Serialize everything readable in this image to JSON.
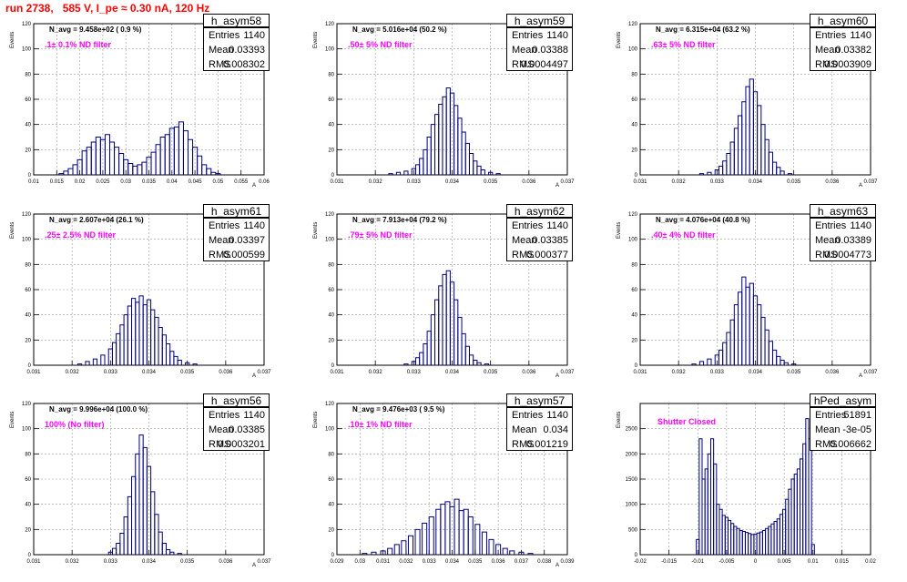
{
  "run_title": "run 2738,   585 V, I_pe ≈ 0.30 nA, 120 Hz",
  "colors": {
    "title": "#ff0000",
    "histogram": "#00007f",
    "filter_text": "#ff00ff",
    "grid": "#999999"
  },
  "chart_data": [
    {
      "type": "histogram",
      "name": "h_asym58",
      "n_avg": "N_avg = 9.458e+02 ( 0.9 %)",
      "filter": ".1± 0.1% ND filter",
      "stats": {
        "entries": "1140",
        "mean": "0.03393",
        "rms": "0.008302"
      },
      "ylabel": "Events",
      "xlabel": "A",
      "xlim": [
        0.01,
        0.06
      ],
      "ylim": [
        0,
        120
      ],
      "xticks": [
        "0.01",
        "0.015",
        "0.02",
        "0.025",
        "0.03",
        "0.035",
        "0.04",
        "0.045",
        "0.05",
        "0.055",
        "0.06"
      ],
      "yticks": [
        "0",
        "20",
        "40",
        "60",
        "80",
        "100",
        "120"
      ],
      "bins": [
        [
          0.016,
          1
        ],
        [
          0.017,
          3
        ],
        [
          0.018,
          5
        ],
        [
          0.019,
          8
        ],
        [
          0.02,
          12
        ],
        [
          0.021,
          19
        ],
        [
          0.022,
          22
        ],
        [
          0.023,
          26
        ],
        [
          0.024,
          30
        ],
        [
          0.025,
          28
        ],
        [
          0.026,
          32
        ],
        [
          0.027,
          26
        ],
        [
          0.028,
          22
        ],
        [
          0.029,
          17
        ],
        [
          0.03,
          12
        ],
        [
          0.031,
          9
        ],
        [
          0.032,
          7
        ],
        [
          0.033,
          8
        ],
        [
          0.034,
          10
        ],
        [
          0.035,
          14
        ],
        [
          0.036,
          18
        ],
        [
          0.037,
          24
        ],
        [
          0.038,
          30
        ],
        [
          0.039,
          32
        ],
        [
          0.04,
          37
        ],
        [
          0.041,
          38
        ],
        [
          0.042,
          42
        ],
        [
          0.043,
          35
        ],
        [
          0.044,
          28
        ],
        [
          0.045,
          22
        ],
        [
          0.046,
          15
        ],
        [
          0.047,
          8
        ],
        [
          0.048,
          5
        ],
        [
          0.049,
          2
        ],
        [
          0.05,
          1
        ]
      ]
    },
    {
      "type": "histogram",
      "name": "h_asym59",
      "n_avg": "N_avg = 5.016e+04 (50.2 %)",
      "filter": ".50± 5% ND filter",
      "stats": {
        "entries": "1140",
        "mean": "0.03388",
        "rms": "0.0004497"
      },
      "ylabel": "Events",
      "xlabel": "A",
      "xlim": [
        0.031,
        0.037
      ],
      "ylim": [
        0,
        120
      ],
      "xticks": [
        "0.031",
        "0.032",
        "0.033",
        "0.034",
        "0.035",
        "0.036",
        "0.037"
      ],
      "yticks": [
        "0",
        "20",
        "40",
        "60",
        "80",
        "100",
        "120"
      ],
      "bins": [
        [
          0.0324,
          1
        ],
        [
          0.0326,
          2
        ],
        [
          0.0328,
          3
        ],
        [
          0.033,
          5
        ],
        [
          0.0331,
          8
        ],
        [
          0.0332,
          13
        ],
        [
          0.0333,
          20
        ],
        [
          0.0334,
          30
        ],
        [
          0.0335,
          40
        ],
        [
          0.0336,
          48
        ],
        [
          0.0337,
          56
        ],
        [
          0.0338,
          62
        ],
        [
          0.0339,
          69
        ],
        [
          0.034,
          65
        ],
        [
          0.0341,
          55
        ],
        [
          0.0342,
          45
        ],
        [
          0.0343,
          34
        ],
        [
          0.0344,
          25
        ],
        [
          0.0345,
          17
        ],
        [
          0.0346,
          11
        ],
        [
          0.0347,
          7
        ],
        [
          0.0348,
          4
        ],
        [
          0.035,
          2
        ],
        [
          0.0352,
          1
        ]
      ]
    },
    {
      "type": "histogram",
      "name": "h_asym60",
      "n_avg": "N_avg = 6.315e+04 (63.2 %)",
      "filter": ".63± 5% ND filter",
      "stats": {
        "entries": "1140",
        "mean": "0.03382",
        "rms": "0.0003909"
      },
      "ylabel": "Events",
      "xlabel": "A",
      "xlim": [
        0.031,
        0.037
      ],
      "ylim": [
        0,
        120
      ],
      "xticks": [
        "0.031",
        "0.032",
        "0.033",
        "0.034",
        "0.035",
        "0.036",
        "0.037"
      ],
      "yticks": [
        "0",
        "20",
        "40",
        "60",
        "80",
        "100",
        "120"
      ],
      "bins": [
        [
          0.0326,
          1
        ],
        [
          0.0328,
          2
        ],
        [
          0.033,
          4
        ],
        [
          0.0331,
          7
        ],
        [
          0.0332,
          11
        ],
        [
          0.0333,
          17
        ],
        [
          0.0334,
          26
        ],
        [
          0.0335,
          37
        ],
        [
          0.0336,
          47
        ],
        [
          0.0337,
          58
        ],
        [
          0.0338,
          70
        ],
        [
          0.0339,
          76
        ],
        [
          0.034,
          66
        ],
        [
          0.0341,
          55
        ],
        [
          0.0342,
          40
        ],
        [
          0.0343,
          28
        ],
        [
          0.0344,
          18
        ],
        [
          0.0345,
          10
        ],
        [
          0.0346,
          6
        ],
        [
          0.0347,
          3
        ],
        [
          0.0349,
          1
        ]
      ]
    },
    {
      "type": "histogram",
      "name": "h_asym61",
      "n_avg": "N_avg = 2.607e+04 (26.1 %)",
      "filter": ".25± 2.5% ND filter",
      "stats": {
        "entries": "1140",
        "mean": "0.03397",
        "rms": "0.000599"
      },
      "ylabel": "Events",
      "xlabel": "A",
      "xlim": [
        0.031,
        0.037
      ],
      "ylim": [
        0,
        120
      ],
      "xticks": [
        "0.031",
        "0.032",
        "0.033",
        "0.034",
        "0.035",
        "0.036",
        "0.037"
      ],
      "yticks": [
        "0",
        "20",
        "40",
        "60",
        "80",
        "100",
        "120"
      ],
      "bins": [
        [
          0.0322,
          1
        ],
        [
          0.0324,
          3
        ],
        [
          0.0326,
          5
        ],
        [
          0.0328,
          8
        ],
        [
          0.033,
          13
        ],
        [
          0.0331,
          18
        ],
        [
          0.0332,
          25
        ],
        [
          0.0333,
          32
        ],
        [
          0.0334,
          40
        ],
        [
          0.0335,
          47
        ],
        [
          0.0336,
          53
        ],
        [
          0.0337,
          50
        ],
        [
          0.0338,
          55
        ],
        [
          0.0339,
          48
        ],
        [
          0.034,
          52
        ],
        [
          0.0341,
          44
        ],
        [
          0.0342,
          38
        ],
        [
          0.0343,
          30
        ],
        [
          0.0344,
          24
        ],
        [
          0.0345,
          17
        ],
        [
          0.0346,
          11
        ],
        [
          0.0347,
          7
        ],
        [
          0.0348,
          4
        ],
        [
          0.035,
          2
        ],
        [
          0.0352,
          1
        ]
      ]
    },
    {
      "type": "histogram",
      "name": "h_asym62",
      "n_avg": "N_avg = 7.913e+04 (79.2 %)",
      "filter": ".79± 5% ND filter",
      "stats": {
        "entries": "1140",
        "mean": "0.03385",
        "rms": "0.000377"
      },
      "ylabel": "Events",
      "xlabel": "A",
      "xlim": [
        0.031,
        0.037
      ],
      "ylim": [
        0,
        120
      ],
      "xticks": [
        "0.031",
        "0.032",
        "0.033",
        "0.034",
        "0.035",
        "0.036",
        "0.037"
      ],
      "yticks": [
        "0",
        "20",
        "40",
        "60",
        "80",
        "100",
        "120"
      ],
      "bins": [
        [
          0.0328,
          1
        ],
        [
          0.033,
          3
        ],
        [
          0.0331,
          6
        ],
        [
          0.0332,
          10
        ],
        [
          0.0333,
          17
        ],
        [
          0.0334,
          27
        ],
        [
          0.0335,
          40
        ],
        [
          0.0336,
          52
        ],
        [
          0.0337,
          63
        ],
        [
          0.0338,
          72
        ],
        [
          0.0339,
          75
        ],
        [
          0.034,
          66
        ],
        [
          0.0341,
          52
        ],
        [
          0.0342,
          38
        ],
        [
          0.0343,
          25
        ],
        [
          0.0344,
          15
        ],
        [
          0.0345,
          8
        ],
        [
          0.0346,
          4
        ],
        [
          0.0347,
          2
        ],
        [
          0.0349,
          1
        ]
      ]
    },
    {
      "type": "histogram",
      "name": "h_asym63",
      "n_avg": "N_avg = 4.076e+04 (40.8 %)",
      "filter": ".40± 4% ND filter",
      "stats": {
        "entries": "1140",
        "mean": "0.03389",
        "rms": "0.0004773"
      },
      "ylabel": "Events",
      "xlabel": "A",
      "xlim": [
        0.031,
        0.037
      ],
      "ylim": [
        0,
        120
      ],
      "xticks": [
        "0.031",
        "0.032",
        "0.033",
        "0.034",
        "0.035",
        "0.036",
        "0.037"
      ],
      "yticks": [
        "0",
        "20",
        "40",
        "60",
        "80",
        "100",
        "120"
      ],
      "bins": [
        [
          0.0324,
          1
        ],
        [
          0.0326,
          3
        ],
        [
          0.0328,
          5
        ],
        [
          0.033,
          8
        ],
        [
          0.0331,
          12
        ],
        [
          0.0332,
          18
        ],
        [
          0.0333,
          26
        ],
        [
          0.0334,
          36
        ],
        [
          0.0335,
          48
        ],
        [
          0.0336,
          58
        ],
        [
          0.0337,
          70
        ],
        [
          0.0338,
          62
        ],
        [
          0.0339,
          65
        ],
        [
          0.034,
          55
        ],
        [
          0.0341,
          48
        ],
        [
          0.0342,
          38
        ],
        [
          0.0343,
          28
        ],
        [
          0.0344,
          19
        ],
        [
          0.0345,
          12
        ],
        [
          0.0346,
          7
        ],
        [
          0.0347,
          4
        ],
        [
          0.0348,
          2
        ],
        [
          0.035,
          1
        ]
      ]
    },
    {
      "type": "histogram",
      "name": "h_asym56",
      "n_avg": "N_avg = 9.996e+04 (100.0 %)",
      "filter": "100% (No filter)",
      "stats": {
        "entries": "1140",
        "mean": "0.03385",
        "rms": "0.0003201"
      },
      "ylabel": "Events",
      "xlabel": "A",
      "xlim": [
        0.031,
        0.037
      ],
      "ylim": [
        0,
        120
      ],
      "xticks": [
        "0.031",
        "0.032",
        "0.033",
        "0.034",
        "0.035",
        "0.036",
        "0.037"
      ],
      "yticks": [
        "0",
        "20",
        "40",
        "60",
        "80",
        "100",
        "120"
      ],
      "bins": [
        [
          0.033,
          2
        ],
        [
          0.0331,
          5
        ],
        [
          0.0332,
          9
        ],
        [
          0.0333,
          17
        ],
        [
          0.0334,
          30
        ],
        [
          0.0335,
          46
        ],
        [
          0.0336,
          62
        ],
        [
          0.0337,
          80
        ],
        [
          0.0338,
          95
        ],
        [
          0.0339,
          85
        ],
        [
          0.034,
          70
        ],
        [
          0.0341,
          50
        ],
        [
          0.0342,
          32
        ],
        [
          0.0343,
          18
        ],
        [
          0.0344,
          9
        ],
        [
          0.0345,
          4
        ],
        [
          0.0346,
          2
        ],
        [
          0.0348,
          1
        ]
      ]
    },
    {
      "type": "histogram",
      "name": "h_asym57",
      "n_avg": "N_avg = 9.476e+03 ( 9.5 %)",
      "filter": ".10± 1% ND filter",
      "stats": {
        "entries": "1140",
        "mean": "0.034",
        "rms": "0.001219"
      },
      "ylabel": "Events",
      "xlabel": "A",
      "xlim": [
        0.029,
        0.039
      ],
      "ylim": [
        0,
        120
      ],
      "xticks": [
        "0.029",
        "0.03",
        "0.031",
        "0.032",
        "0.033",
        "0.034",
        "0.035",
        "0.036",
        "0.037",
        "0.038",
        "0.039"
      ],
      "yticks": [
        "0",
        "20",
        "40",
        "60",
        "80",
        "100",
        "120"
      ],
      "bins": [
        [
          0.0302,
          1
        ],
        [
          0.0306,
          2
        ],
        [
          0.031,
          3
        ],
        [
          0.0313,
          5
        ],
        [
          0.0316,
          8
        ],
        [
          0.0319,
          11
        ],
        [
          0.0322,
          15
        ],
        [
          0.0325,
          20
        ],
        [
          0.0328,
          25
        ],
        [
          0.0331,
          30
        ],
        [
          0.0334,
          36
        ],
        [
          0.0336,
          40
        ],
        [
          0.0338,
          42
        ],
        [
          0.034,
          38
        ],
        [
          0.0342,
          44
        ],
        [
          0.0344,
          35
        ],
        [
          0.0346,
          36
        ],
        [
          0.0348,
          30
        ],
        [
          0.0351,
          24
        ],
        [
          0.0354,
          18
        ],
        [
          0.0357,
          12
        ],
        [
          0.036,
          8
        ],
        [
          0.0363,
          5
        ],
        [
          0.0366,
          3
        ],
        [
          0.037,
          2
        ],
        [
          0.0374,
          1
        ]
      ]
    },
    {
      "type": "histogram",
      "name": "hPed_asym",
      "n_avg": "",
      "filter": "Shutter Closed",
      "stats": {
        "entries": "51891",
        "mean": "-3e-05",
        "rms": "0.006662"
      },
      "ylabel": "Events",
      "xlabel": "",
      "xlim": [
        -0.02,
        0.02
      ],
      "ylim": [
        0,
        3000
      ],
      "xticks": [
        "-0.02",
        "-0.015",
        "-0.01",
        "-0.005",
        "0",
        "0.005",
        "0.01",
        "0.015",
        "0.02"
      ],
      "yticks": [
        "0",
        "500",
        "1000",
        "1500",
        "2000",
        "2500"
      ],
      "bins": [
        [
          -0.01,
          300
        ],
        [
          -0.0095,
          2300
        ],
        [
          -0.009,
          1500
        ],
        [
          -0.0085,
          1700
        ],
        [
          -0.008,
          2000
        ],
        [
          -0.0075,
          2300
        ],
        [
          -0.007,
          1800
        ],
        [
          -0.0065,
          1000
        ],
        [
          -0.006,
          900
        ],
        [
          -0.0055,
          780
        ],
        [
          -0.005,
          740
        ],
        [
          -0.0045,
          680
        ],
        [
          -0.004,
          620
        ],
        [
          -0.0035,
          560
        ],
        [
          -0.003,
          520
        ],
        [
          -0.0025,
          480
        ],
        [
          -0.002,
          460
        ],
        [
          -0.0015,
          440
        ],
        [
          -0.001,
          420
        ],
        [
          -0.0005,
          400
        ],
        [
          0.0,
          410
        ],
        [
          0.0005,
          430
        ],
        [
          0.001,
          450
        ],
        [
          0.0015,
          480
        ],
        [
          0.002,
          520
        ],
        [
          0.0025,
          560
        ],
        [
          0.003,
          610
        ],
        [
          0.0035,
          660
        ],
        [
          0.004,
          710
        ],
        [
          0.0045,
          800
        ],
        [
          0.005,
          900
        ],
        [
          0.0055,
          1100
        ],
        [
          0.006,
          1300
        ],
        [
          0.0065,
          1500
        ],
        [
          0.007,
          1600
        ],
        [
          0.0075,
          1700
        ],
        [
          0.008,
          1900
        ],
        [
          0.0085,
          2200
        ],
        [
          0.009,
          2700
        ],
        [
          0.0095,
          2300
        ],
        [
          0.01,
          200
        ]
      ]
    }
  ]
}
